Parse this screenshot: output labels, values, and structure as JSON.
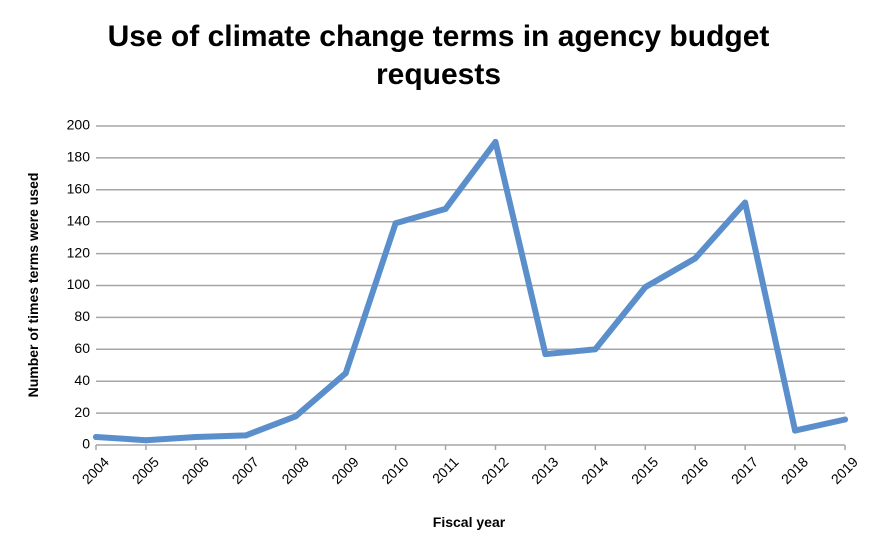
{
  "chart_data": {
    "type": "line",
    "title": "Use of climate change terms in agency budget requests",
    "title_lines": [
      "Use of climate change terms in agency budget",
      "requests"
    ],
    "xlabel": "Fiscal year",
    "ylabel": "Number of times terms were used",
    "categories": [
      "2004",
      "2005",
      "2006",
      "2007",
      "2008",
      "2009",
      "2010",
      "2011",
      "2012",
      "2013",
      "2014",
      "2015",
      "2016",
      "2017",
      "2018",
      "2019"
    ],
    "series": [
      {
        "values": [
          5,
          3,
          5,
          6,
          18,
          45,
          139,
          148,
          190,
          57,
          60,
          99,
          117,
          152,
          9,
          16
        ]
      }
    ],
    "ylim": [
      0,
      200
    ],
    "yticks": [
      0,
      20,
      40,
      60,
      80,
      100,
      120,
      140,
      160,
      180,
      200
    ],
    "grid": true,
    "legend": "none",
    "line_color": "#5b8fcb",
    "grid_color": "#a6a6a6"
  }
}
